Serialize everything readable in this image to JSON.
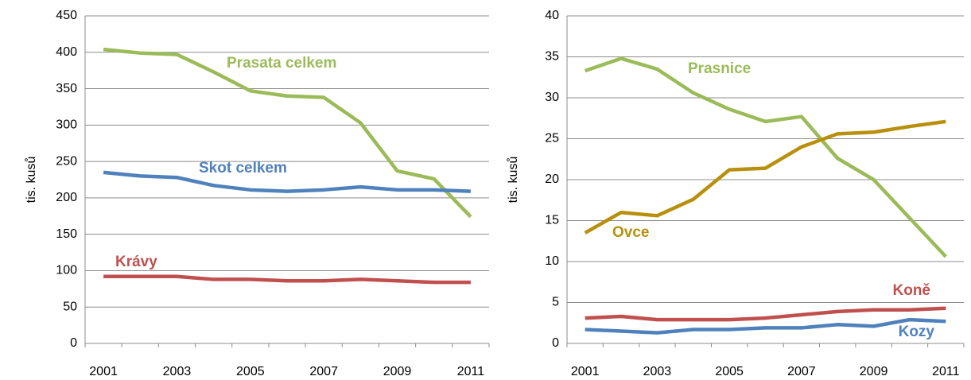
{
  "chart_data": [
    {
      "type": "line",
      "ylabel": "tis. kusů",
      "categories": [
        "2001",
        null,
        "2003",
        null,
        "2005",
        null,
        "2007",
        null,
        "2009",
        null,
        "2011"
      ],
      "ylim": [
        0,
        450
      ],
      "yticks": [
        0,
        50,
        100,
        150,
        200,
        250,
        300,
        350,
        400,
        450
      ],
      "grid": true,
      "series": [
        {
          "name": "Prasata celkem",
          "color": "#9bbb59",
          "values": [
            404,
            399,
            397,
            373,
            347,
            340,
            338,
            303,
            237,
            226,
            174
          ]
        },
        {
          "name": "Skot celkem",
          "color": "#4f81bd",
          "values": [
            235,
            230,
            228,
            217,
            211,
            209,
            211,
            215,
            211,
            211,
            209
          ]
        },
        {
          "name": "Krávy",
          "color": "#c0504d",
          "values": [
            92,
            92,
            92,
            88,
            88,
            86,
            86,
            88,
            86,
            84,
            84
          ]
        }
      ]
    },
    {
      "type": "line",
      "ylabel": "tis. kusů",
      "categories": [
        "2001",
        null,
        "2003",
        null,
        "2005",
        null,
        "2007",
        null,
        "2009",
        null,
        "2011"
      ],
      "ylim": [
        0,
        40
      ],
      "yticks": [
        0,
        5,
        10,
        15,
        20,
        25,
        30,
        35,
        40
      ],
      "grid": true,
      "series": [
        {
          "name": "Prasnice",
          "color": "#9bbb59",
          "values": [
            33.3,
            34.8,
            33.5,
            30.6,
            28.6,
            27.1,
            27.7,
            22.6,
            20.0,
            15.3,
            10.6
          ]
        },
        {
          "name": "Ovce",
          "color": "#b8900d",
          "values": [
            13.5,
            16.0,
            15.6,
            17.6,
            21.2,
            21.4,
            24.0,
            25.6,
            25.8,
            26.5,
            27.1
          ]
        },
        {
          "name": "Koně",
          "color": "#c0504d",
          "values": [
            3.1,
            3.3,
            2.9,
            2.9,
            2.9,
            3.1,
            3.5,
            3.9,
            4.1,
            4.1,
            4.3
          ]
        },
        {
          "name": "Kozy",
          "color": "#4f81bd",
          "values": [
            1.7,
            1.5,
            1.3,
            1.7,
            1.7,
            1.9,
            1.9,
            2.3,
            2.1,
            2.9,
            2.7
          ]
        }
      ]
    }
  ]
}
